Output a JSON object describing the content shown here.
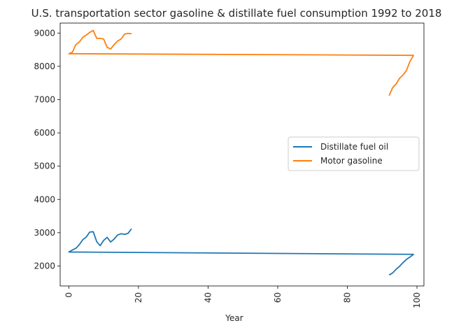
{
  "chart_data": {
    "type": "line",
    "title": "U.S. transportation sector gasoline & distillate fuel consumption 1992 to 2018",
    "xlabel": "Year",
    "ylabel": "",
    "xlim": [
      -2.5,
      102
    ],
    "ylim": [
      1400,
      9300
    ],
    "xticks": [
      0,
      20,
      40,
      60,
      80,
      100
    ],
    "yticks": [
      2000,
      3000,
      4000,
      5000,
      6000,
      7000,
      8000,
      9000
    ],
    "grid": false,
    "legend_position": "center-right",
    "series": [
      {
        "name": "Distillate fuel oil",
        "color": "#1f77b4",
        "x": [
          92,
          93,
          94,
          95,
          96,
          97,
          98,
          99,
          0,
          1,
          2,
          3,
          4,
          5,
          6,
          7,
          8,
          9,
          10,
          11,
          12,
          13,
          14,
          15,
          16,
          17,
          18
        ],
        "y": [
          1730,
          1790,
          1900,
          1990,
          2100,
          2200,
          2270,
          2350,
          2420,
          2480,
          2530,
          2640,
          2790,
          2870,
          3020,
          3030,
          2730,
          2610,
          2770,
          2860,
          2720,
          2810,
          2930,
          2970,
          2950,
          2980,
          3120
        ]
      },
      {
        "name": "Motor gasoline",
        "color": "#ff7f0e",
        "x": [
          92,
          93,
          94,
          95,
          96,
          97,
          98,
          99,
          0,
          1,
          2,
          3,
          4,
          5,
          6,
          7,
          8,
          9,
          10,
          11,
          12,
          13,
          14,
          15,
          16,
          17,
          18
        ],
        "y": [
          7120,
          7360,
          7470,
          7640,
          7740,
          7880,
          8150,
          8330,
          8380,
          8420,
          8650,
          8730,
          8870,
          8940,
          9020,
          9080,
          8840,
          8840,
          8820,
          8570,
          8520,
          8650,
          8760,
          8820,
          8970,
          8990,
          8980
        ]
      }
    ]
  }
}
